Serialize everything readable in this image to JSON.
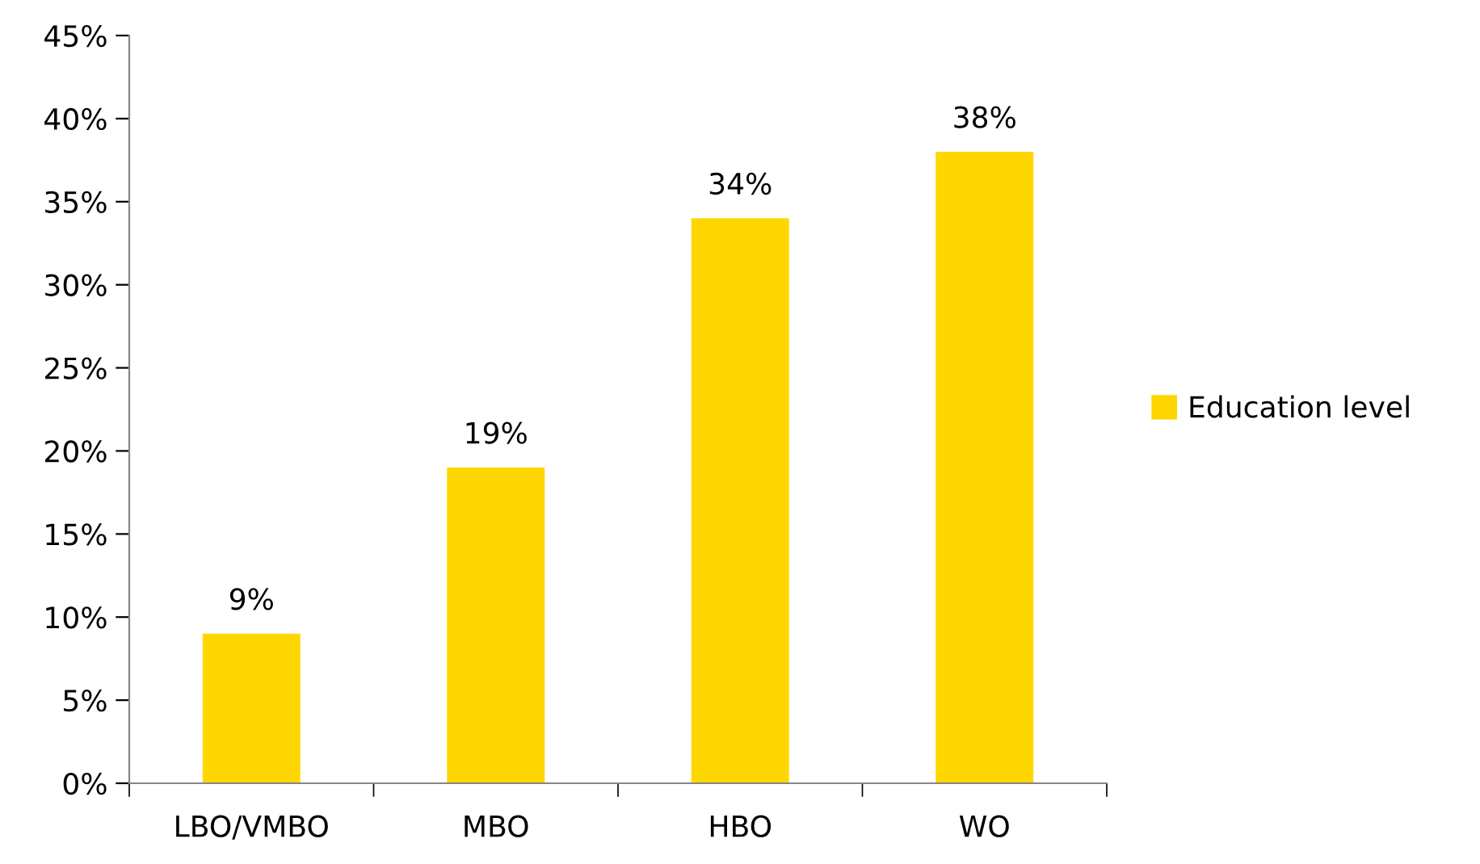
{
  "chart_data": {
    "type": "bar",
    "categories": [
      "LBO/VMBO",
      "MBO",
      "HBO",
      "WO"
    ],
    "series": [
      {
        "name": "Education level",
        "color": "#ffd700",
        "values": [
          9,
          19,
          34,
          38
        ],
        "value_labels": [
          "9%",
          "19%",
          "34%",
          "38%"
        ]
      }
    ],
    "ylim": [
      0,
      45
    ],
    "yticks": [
      {
        "value": 0,
        "label": "0%"
      },
      {
        "value": 5,
        "label": "5%"
      },
      {
        "value": 10,
        "label": "10%"
      },
      {
        "value": 15,
        "label": "15%"
      },
      {
        "value": 20,
        "label": "20%"
      },
      {
        "value": 25,
        "label": "25%"
      },
      {
        "value": 30,
        "label": "30%"
      },
      {
        "value": 35,
        "label": "35%"
      },
      {
        "value": 40,
        "label": "40%"
      },
      {
        "value": 45,
        "label": "45%"
      }
    ],
    "grid": false,
    "legend": "right"
  }
}
